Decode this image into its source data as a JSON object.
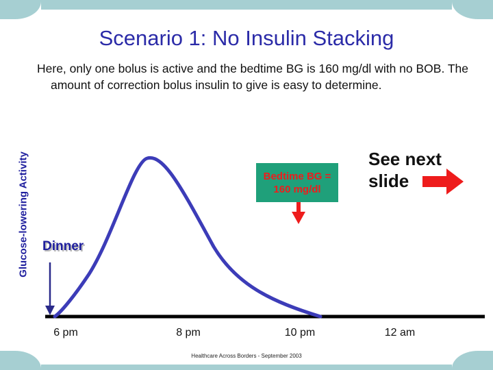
{
  "title": "Scenario 1: No Insulin Stacking",
  "intro": "Here, only one bolus is active and the bedtime BG is 160 mg/dl with no BOB. The amount of correction bolus insulin to give is easy to determine.",
  "y_axis_label": "Glucose-lowering Activity",
  "bedtime_label": "Bedtime BG = 160 mg/dl",
  "see_next": "See next slide",
  "dinner_label": "Dinner",
  "x_ticks": [
    "6 pm",
    "8 pm",
    "10 pm",
    "12 am"
  ],
  "footer": "Healthcare Across Borders - September 2003",
  "colors": {
    "frame": "#a6cfd2",
    "title": "#2b2ba8",
    "curve": "#3c3cb8",
    "axis": "#000000",
    "box_fill": "#1fa07a",
    "box_text": "#ee1c1c",
    "arrow": "#ee1c1c",
    "dinner_arrow": "#2a2a8a"
  }
}
